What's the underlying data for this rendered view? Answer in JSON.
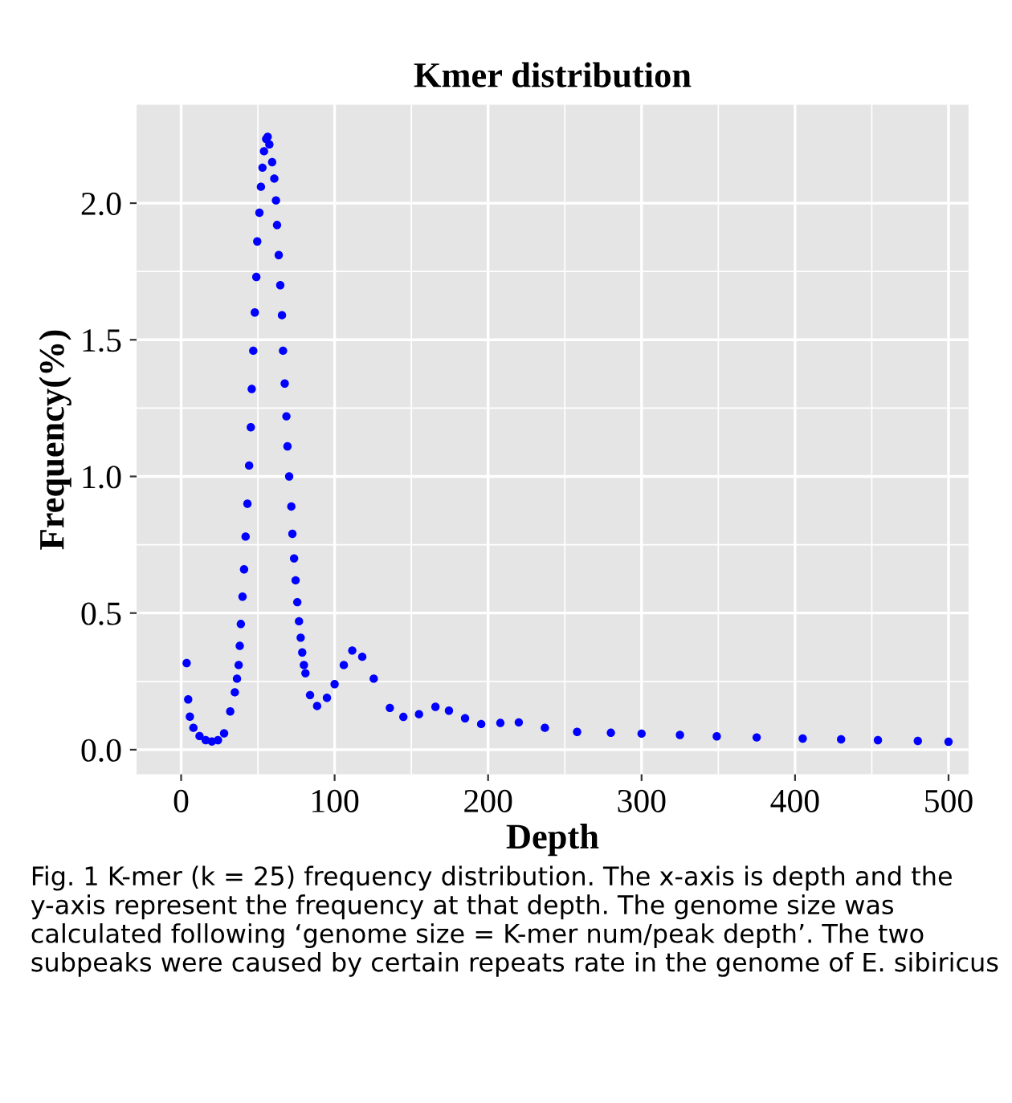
{
  "chart_data": {
    "type": "scatter",
    "title": "Kmer distribution",
    "xlabel": "Depth",
    "ylabel": "Frequency(%)",
    "x": [
      3.6,
      4.6,
      5.7,
      8,
      12,
      16,
      20,
      24,
      28,
      32,
      35,
      36.4,
      37.5,
      38.2,
      38.9,
      40,
      41,
      42,
      43.2,
      44.3,
      45.4,
      46,
      47,
      48,
      49,
      49.6,
      51,
      52,
      53,
      54,
      55.4,
      56.4,
      57.5,
      59.3,
      60.7,
      61.8,
      62.5,
      63.6,
      64.6,
      65.7,
      66.4,
      67.5,
      68.6,
      69.3,
      70.4,
      71.8,
      72.5,
      73.6,
      74.6,
      75.7,
      76.8,
      77.9,
      78.9,
      80,
      81,
      84,
      88.6,
      95,
      100,
      106,
      111.5,
      118,
      125.5,
      136,
      144.8,
      155,
      165.7,
      174.5,
      185,
      195.5,
      208,
      220,
      237,
      258,
      280,
      300,
      325,
      349,
      375,
      405,
      430,
      454,
      480,
      500
    ],
    "series": [
      {
        "color": "#0000ff",
        "values": [
          0.317,
          0.184,
          0.121,
          0.08,
          0.05,
          0.035,
          0.03,
          0.035,
          0.06,
          0.14,
          0.21,
          0.26,
          0.31,
          0.38,
          0.46,
          0.56,
          0.66,
          0.78,
          0.9,
          1.04,
          1.18,
          1.32,
          1.46,
          1.6,
          1.73,
          1.86,
          1.965,
          2.06,
          2.13,
          2.19,
          2.235,
          2.243,
          2.215,
          2.15,
          2.09,
          2.01,
          1.92,
          1.81,
          1.7,
          1.59,
          1.46,
          1.34,
          1.22,
          1.11,
          1.0,
          0.89,
          0.79,
          0.7,
          0.62,
          0.54,
          0.47,
          0.41,
          0.356,
          0.31,
          0.28,
          0.2,
          0.16,
          0.19,
          0.24,
          0.31,
          0.363,
          0.34,
          0.26,
          0.153,
          0.12,
          0.13,
          0.157,
          0.143,
          0.115,
          0.094,
          0.098,
          0.1,
          0.08,
          0.065,
          0.062,
          0.059,
          0.054,
          0.049,
          0.045,
          0.041,
          0.038,
          0.035,
          0.032,
          0.029
        ]
      }
    ],
    "xlim": [
      -29,
      513
    ],
    "ylim": [
      -0.09,
      2.36
    ],
    "xticks": [
      0,
      100,
      200,
      300,
      400,
      500
    ],
    "yticks": [
      {
        "value": 0,
        "label": "0.0"
      },
      0.5,
      {
        "value": 1,
        "label": "1.0"
      },
      1.5,
      {
        "value": 2,
        "label": "2.0"
      }
    ],
    "grid": true,
    "marker": "circle",
    "legend": false,
    "annotations": [
      "Fig. 1 K-mer (k = 25) frequency distribution. The x-axis is depth and the y-axis represent the frequency at that depth. The genome size was calculated following ‘genome size = K-mer num/peak depth’. The two subpeaks were caused by certain repeats rate in the genome of E. sibiricus"
    ]
  }
}
